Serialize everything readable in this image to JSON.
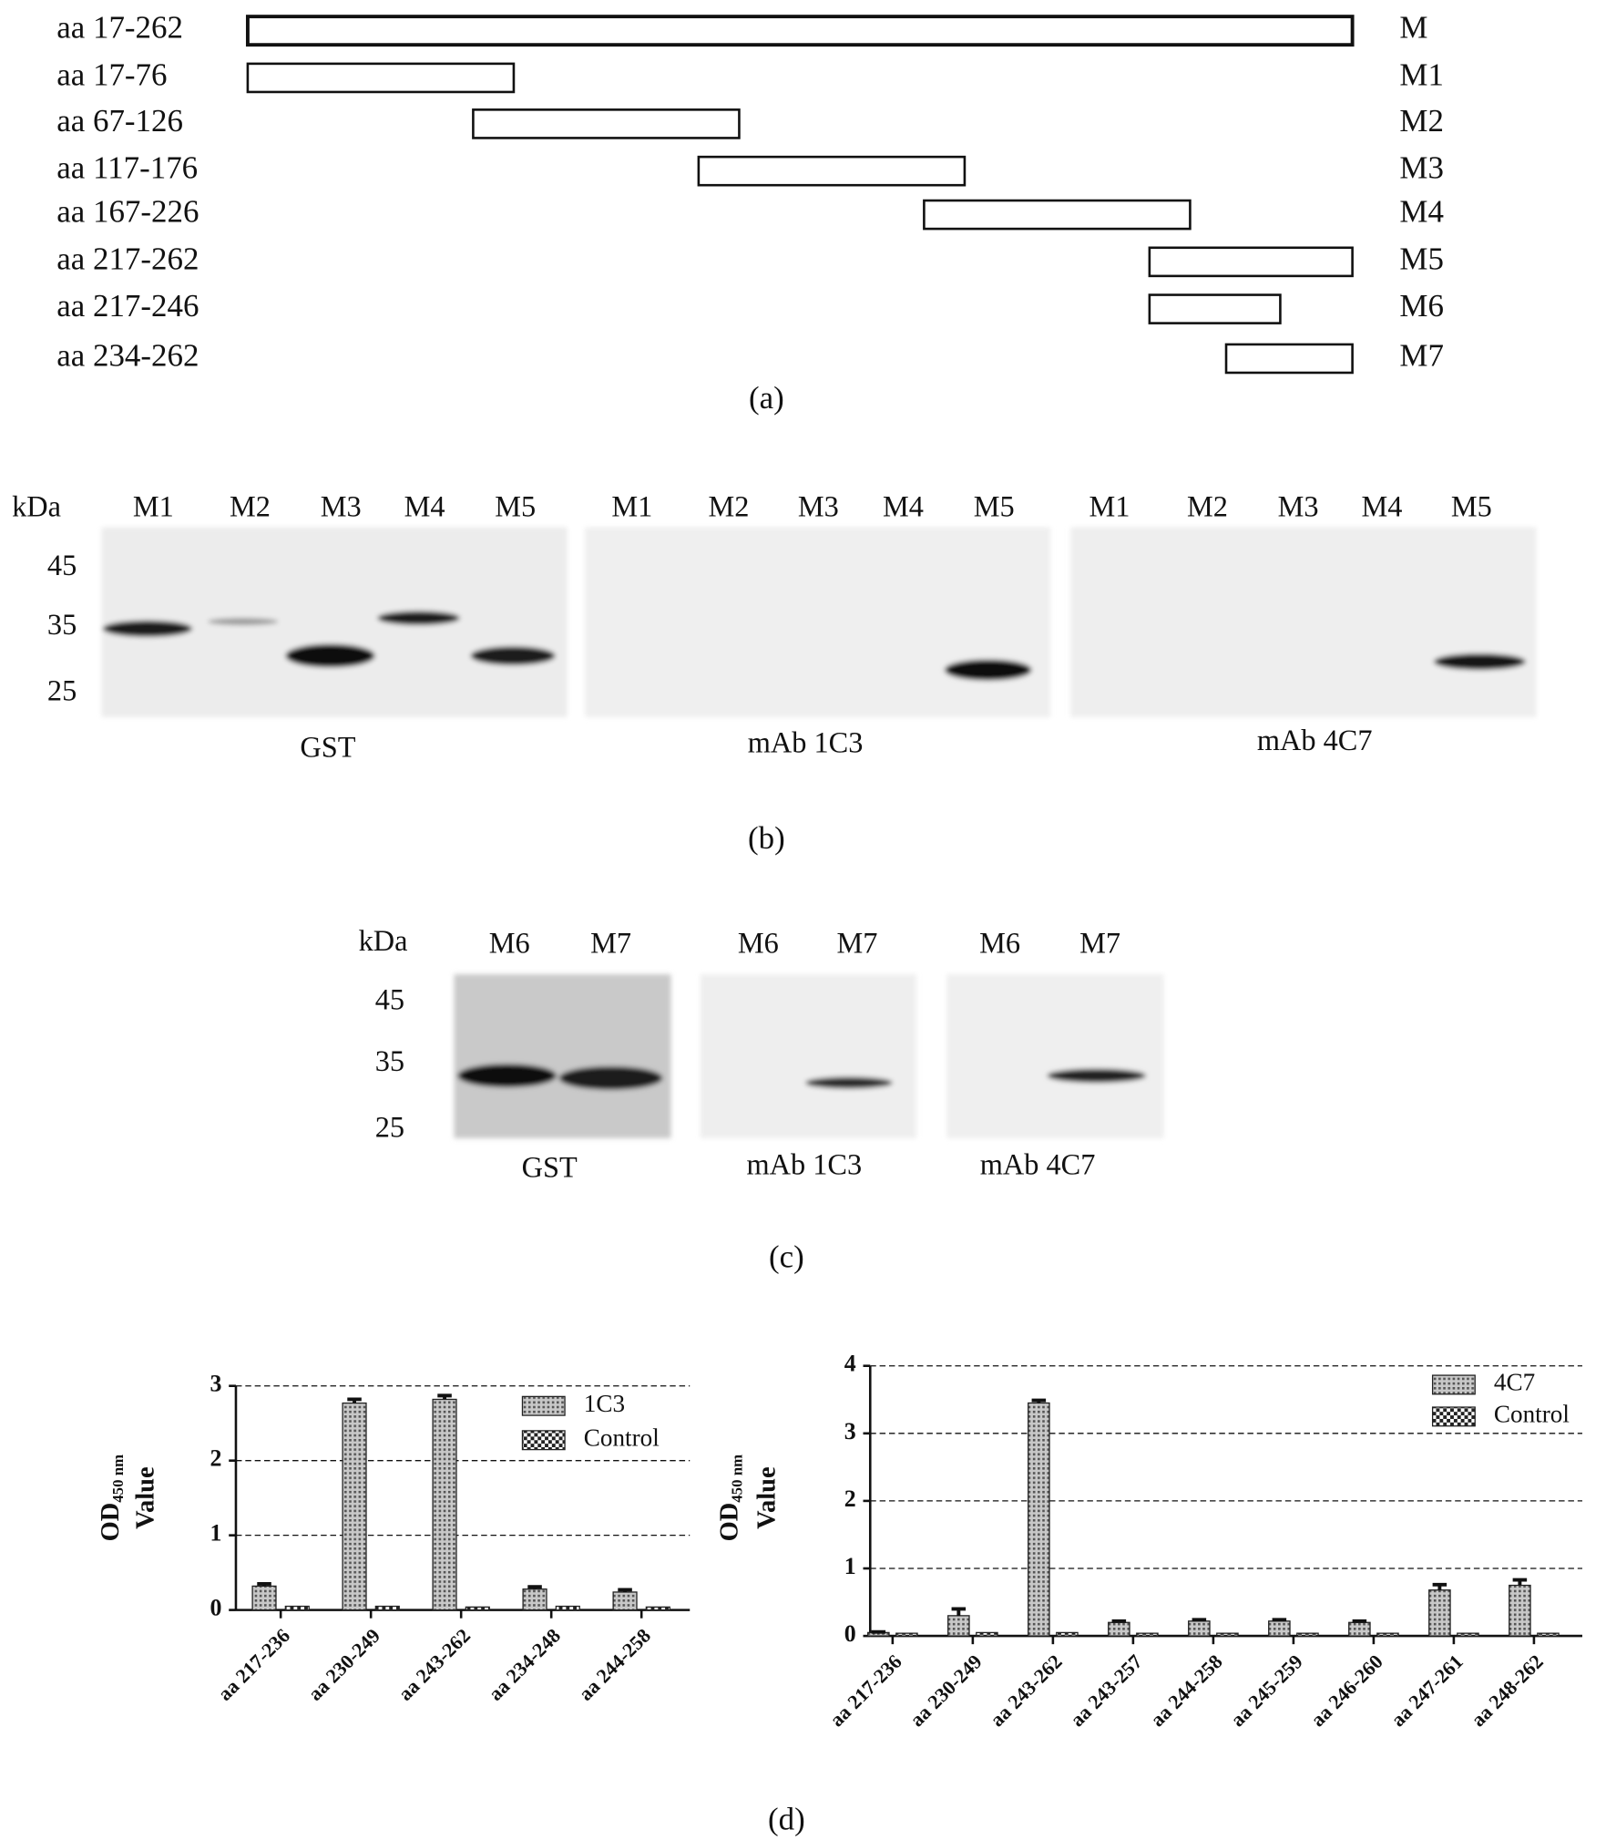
{
  "panel_a": {
    "label": "(a)",
    "rows": [
      {
        "range_label": "aa 17-262",
        "start": 17,
        "end": 262,
        "name": "M"
      },
      {
        "range_label": "aa 17-76",
        "start": 17,
        "end": 76,
        "name": "M1"
      },
      {
        "range_label": "aa 67-126",
        "start": 67,
        "end": 126,
        "name": "M2"
      },
      {
        "range_label": "aa 117-176",
        "start": 117,
        "end": 176,
        "name": "M3"
      },
      {
        "range_label": "aa 167-226",
        "start": 167,
        "end": 226,
        "name": "M4"
      },
      {
        "range_label": "aa 217-262",
        "start": 217,
        "end": 262,
        "name": "M5"
      },
      {
        "range_label": "aa 217-246",
        "start": 217,
        "end": 246,
        "name": "M6"
      },
      {
        "range_label": "aa 234-262",
        "start": 234,
        "end": 262,
        "name": "M7"
      }
    ]
  },
  "panel_b": {
    "label": "(b)",
    "unit": "kDa",
    "markers": [
      45,
      35,
      25
    ],
    "blots": [
      {
        "lanes": [
          "M1",
          "M2",
          "M3",
          "M4",
          "M5"
        ],
        "caption": "GST"
      },
      {
        "lanes": [
          "M1",
          "M2",
          "M3",
          "M4",
          "M5"
        ],
        "caption": "mAb 1C3"
      },
      {
        "lanes": [
          "M1",
          "M2",
          "M3",
          "M4",
          "M5"
        ],
        "caption": "mAb 4C7"
      }
    ]
  },
  "panel_c": {
    "label": "(c)",
    "unit": "kDa",
    "markers": [
      45,
      35,
      25
    ],
    "blots": [
      {
        "lanes": [
          "M6",
          "M7"
        ],
        "caption": "GST"
      },
      {
        "lanes": [
          "M6",
          "M7"
        ],
        "caption": "mAb 1C3"
      },
      {
        "lanes": [
          "M6",
          "M7"
        ],
        "caption": "mAb 4C7"
      }
    ]
  },
  "panel_d": {
    "label": "(d)"
  },
  "chart_data": [
    {
      "type": "bar",
      "y_label": {
        "main": "OD",
        "subscript": "450 nm",
        "line2": "Value"
      },
      "categories": [
        "aa 217-236",
        "aa 230-249",
        "aa 243-262",
        "aa 234-248",
        "aa 244-258"
      ],
      "series": [
        {
          "name": "1C3",
          "pattern": "hatch",
          "values": [
            0.32,
            2.77,
            2.82,
            0.28,
            0.24
          ],
          "errors": [
            0.03,
            0.05,
            0.05,
            0.03,
            0.03
          ]
        },
        {
          "name": "Control",
          "pattern": "checker",
          "values": [
            0.05,
            0.05,
            0.04,
            0.05,
            0.04
          ]
        }
      ],
      "ylim": [
        0,
        3
      ],
      "yticks": [
        0,
        1,
        2,
        3
      ],
      "grid": true,
      "legend": "upper-right"
    },
    {
      "type": "bar",
      "y_label": {
        "main": "OD",
        "subscript": "450 nm",
        "line2": "Value"
      },
      "categories": [
        "aa 217-236",
        "aa 230-249",
        "aa 243-262",
        "aa 243-257",
        "aa 244-258",
        "aa 245-259",
        "aa 246-260",
        "aa 247-261",
        "aa 248-262"
      ],
      "series": [
        {
          "name": "4C7",
          "pattern": "hatch",
          "values": [
            0.05,
            0.3,
            3.45,
            0.2,
            0.22,
            0.22,
            0.2,
            0.68,
            0.75
          ],
          "errors": [
            0.01,
            0.1,
            0.04,
            0.02,
            0.02,
            0.02,
            0.02,
            0.08,
            0.08
          ]
        },
        {
          "name": "Control",
          "pattern": "checker",
          "values": [
            0.04,
            0.05,
            0.05,
            0.04,
            0.04,
            0.04,
            0.04,
            0.04,
            0.04
          ]
        }
      ],
      "ylim": [
        0,
        4
      ],
      "yticks": [
        0,
        1,
        2,
        3,
        4
      ],
      "grid": true,
      "legend": "upper-right"
    }
  ]
}
